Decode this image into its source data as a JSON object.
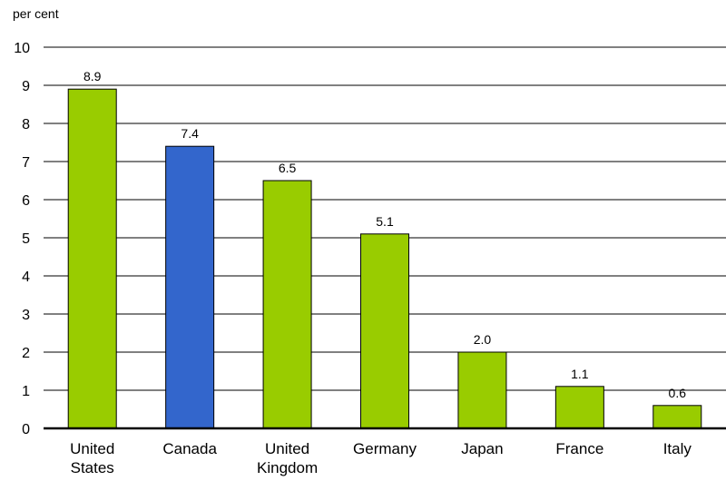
{
  "chart_data": {
    "type": "bar",
    "title": "",
    "ylabel": "per cent",
    "xlabel": "",
    "ylim": [
      0,
      10
    ],
    "yticks": [
      0,
      1,
      2,
      3,
      4,
      5,
      6,
      7,
      8,
      9,
      10
    ],
    "grid": true,
    "categories": [
      [
        "United",
        "States"
      ],
      [
        "Canada"
      ],
      [
        "United",
        "Kingdom"
      ],
      [
        "Germany"
      ],
      [
        "Japan"
      ],
      [
        "France"
      ],
      [
        "Italy"
      ]
    ],
    "values": [
      8.9,
      7.4,
      6.5,
      5.1,
      2.0,
      1.1,
      0.6
    ],
    "value_labels": [
      "8.9",
      "7.4",
      "6.5",
      "5.1",
      "2.0",
      "1.1",
      "0.6"
    ],
    "highlight_index": 1,
    "colors": {
      "default": "#99cc00",
      "highlight": "#3366cc",
      "outline": "#000000",
      "grid": "#000000"
    }
  }
}
